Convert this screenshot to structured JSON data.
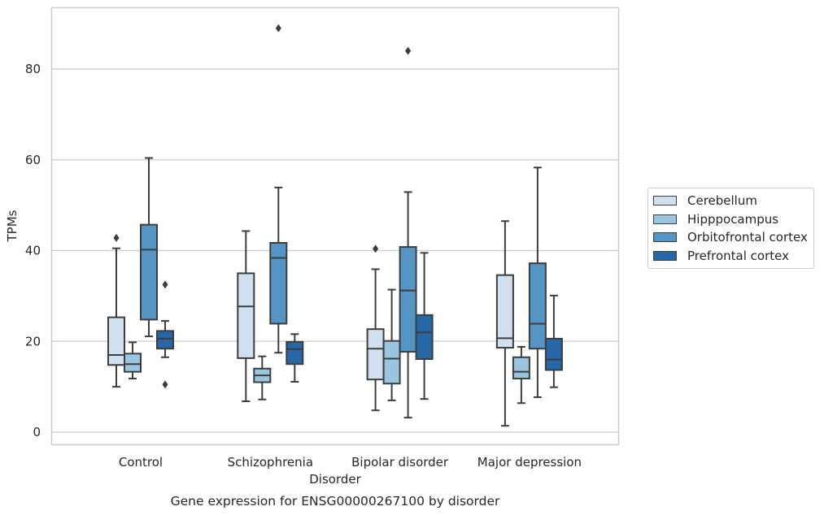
{
  "chart_data": {
    "type": "box",
    "caption": "Gene expression for ENSG00000267100 by disorder",
    "xlabel": "Disorder",
    "ylabel": "TPMs",
    "ylim": [
      -2.5,
      93.5
    ],
    "yticks": [
      0,
      20,
      40,
      60,
      80
    ],
    "grid": "horizontal",
    "legend_position": "right",
    "categories": [
      "Control",
      "Schizophrenia",
      "Bipolar disorder",
      "Major depression"
    ],
    "series": [
      {
        "name": "Cerebellum",
        "color": "#d0e0ef",
        "boxes": [
          {
            "whislo": 10.0,
            "q1": 14.8,
            "med": 17.0,
            "q3": 25.3,
            "whishi": 40.5,
            "fliers": [
              42.8
            ]
          },
          {
            "whislo": 6.8,
            "q1": 16.3,
            "med": 27.7,
            "q3": 35.0,
            "whishi": 44.3,
            "fliers": []
          },
          {
            "whislo": 4.8,
            "q1": 11.6,
            "med": 18.4,
            "q3": 22.7,
            "whishi": 35.9,
            "fliers": [
              40.4
            ]
          },
          {
            "whislo": 1.4,
            "q1": 18.6,
            "med": 20.7,
            "q3": 34.6,
            "whishi": 46.5,
            "fliers": []
          }
        ]
      },
      {
        "name": "Hipppocampus",
        "color": "#9ac5df",
        "boxes": [
          {
            "whislo": 11.8,
            "q1": 13.3,
            "med": 15.0,
            "q3": 17.3,
            "whishi": 19.8,
            "fliers": []
          },
          {
            "whislo": 7.2,
            "q1": 11.0,
            "med": 12.5,
            "q3": 14.0,
            "whishi": 16.7,
            "fliers": []
          },
          {
            "whislo": 7.0,
            "q1": 10.7,
            "med": 16.2,
            "q3": 20.1,
            "whishi": 31.4,
            "fliers": []
          },
          {
            "whislo": 6.4,
            "q1": 11.8,
            "med": 13.3,
            "q3": 16.5,
            "whishi": 18.8,
            "fliers": []
          }
        ]
      },
      {
        "name": "Orbitofrontal cortex",
        "color": "#5595c5",
        "boxes": [
          {
            "whislo": 21.1,
            "q1": 24.8,
            "med": 40.2,
            "q3": 45.7,
            "whishi": 60.4,
            "fliers": []
          },
          {
            "whislo": 17.5,
            "q1": 23.9,
            "med": 38.4,
            "q3": 41.7,
            "whishi": 53.9,
            "fliers": [
              89.0
            ]
          },
          {
            "whislo": 3.2,
            "q1": 17.7,
            "med": 31.2,
            "q3": 40.8,
            "whishi": 52.9,
            "fliers": [
              84.0
            ]
          },
          {
            "whislo": 7.7,
            "q1": 18.4,
            "med": 23.9,
            "q3": 37.2,
            "whishi": 58.3,
            "fliers": []
          }
        ]
      },
      {
        "name": "Prefrontal cortex",
        "color": "#2567a7",
        "boxes": [
          {
            "whislo": 16.5,
            "q1": 18.4,
            "med": 20.6,
            "q3": 22.3,
            "whishi": 24.5,
            "fliers": [
              32.5,
              10.5
            ]
          },
          {
            "whislo": 11.1,
            "q1": 15.0,
            "med": 18.3,
            "q3": 19.9,
            "whishi": 21.6,
            "fliers": []
          },
          {
            "whislo": 7.3,
            "q1": 16.1,
            "med": 22.0,
            "q3": 25.8,
            "whishi": 39.5,
            "fliers": []
          },
          {
            "whislo": 9.9,
            "q1": 13.7,
            "med": 16.0,
            "q3": 20.6,
            "whishi": 30.1,
            "fliers": []
          }
        ]
      }
    ]
  }
}
